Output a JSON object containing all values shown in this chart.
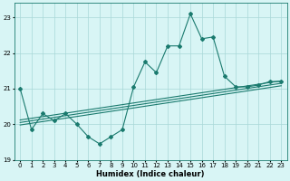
{
  "x": [
    0,
    1,
    2,
    3,
    4,
    5,
    6,
    7,
    8,
    9,
    10,
    11,
    12,
    13,
    14,
    15,
    16,
    17,
    18,
    19,
    20,
    21,
    22,
    23
  ],
  "y": [
    21.0,
    19.85,
    20.3,
    20.1,
    20.3,
    20.0,
    19.65,
    19.45,
    19.65,
    19.85,
    21.05,
    21.75,
    21.45,
    22.2,
    22.2,
    23.1,
    22.4,
    22.45,
    21.35,
    21.05,
    21.05,
    21.1,
    21.2,
    21.2
  ],
  "trend_base_y0": 20.05,
  "trend_base_y1": 21.15,
  "trend_offsets": [
    -0.07,
    0.0,
    0.07
  ],
  "line_color": "#1a7a6e",
  "bg_color": "#d8f5f5",
  "grid_color": "#a8d8d8",
  "xlabel": "Humidex (Indice chaleur)",
  "ylim": [
    19.0,
    23.4
  ],
  "xlim": [
    -0.5,
    23.5
  ],
  "yticks": [
    19,
    20,
    21,
    22,
    23
  ],
  "xtick_labels": [
    "0",
    "1",
    "2",
    "3",
    "4",
    "5",
    "6",
    "7",
    "8",
    "9",
    "10",
    "11",
    "12",
    "13",
    "14",
    "15",
    "16",
    "17",
    "18",
    "19",
    "20",
    "21",
    "22",
    "23"
  ],
  "tick_fontsize": 5.0,
  "xlabel_fontsize": 6.0,
  "ylabel_fontsize": 5.5,
  "linewidth": 0.8,
  "markersize": 2.0
}
